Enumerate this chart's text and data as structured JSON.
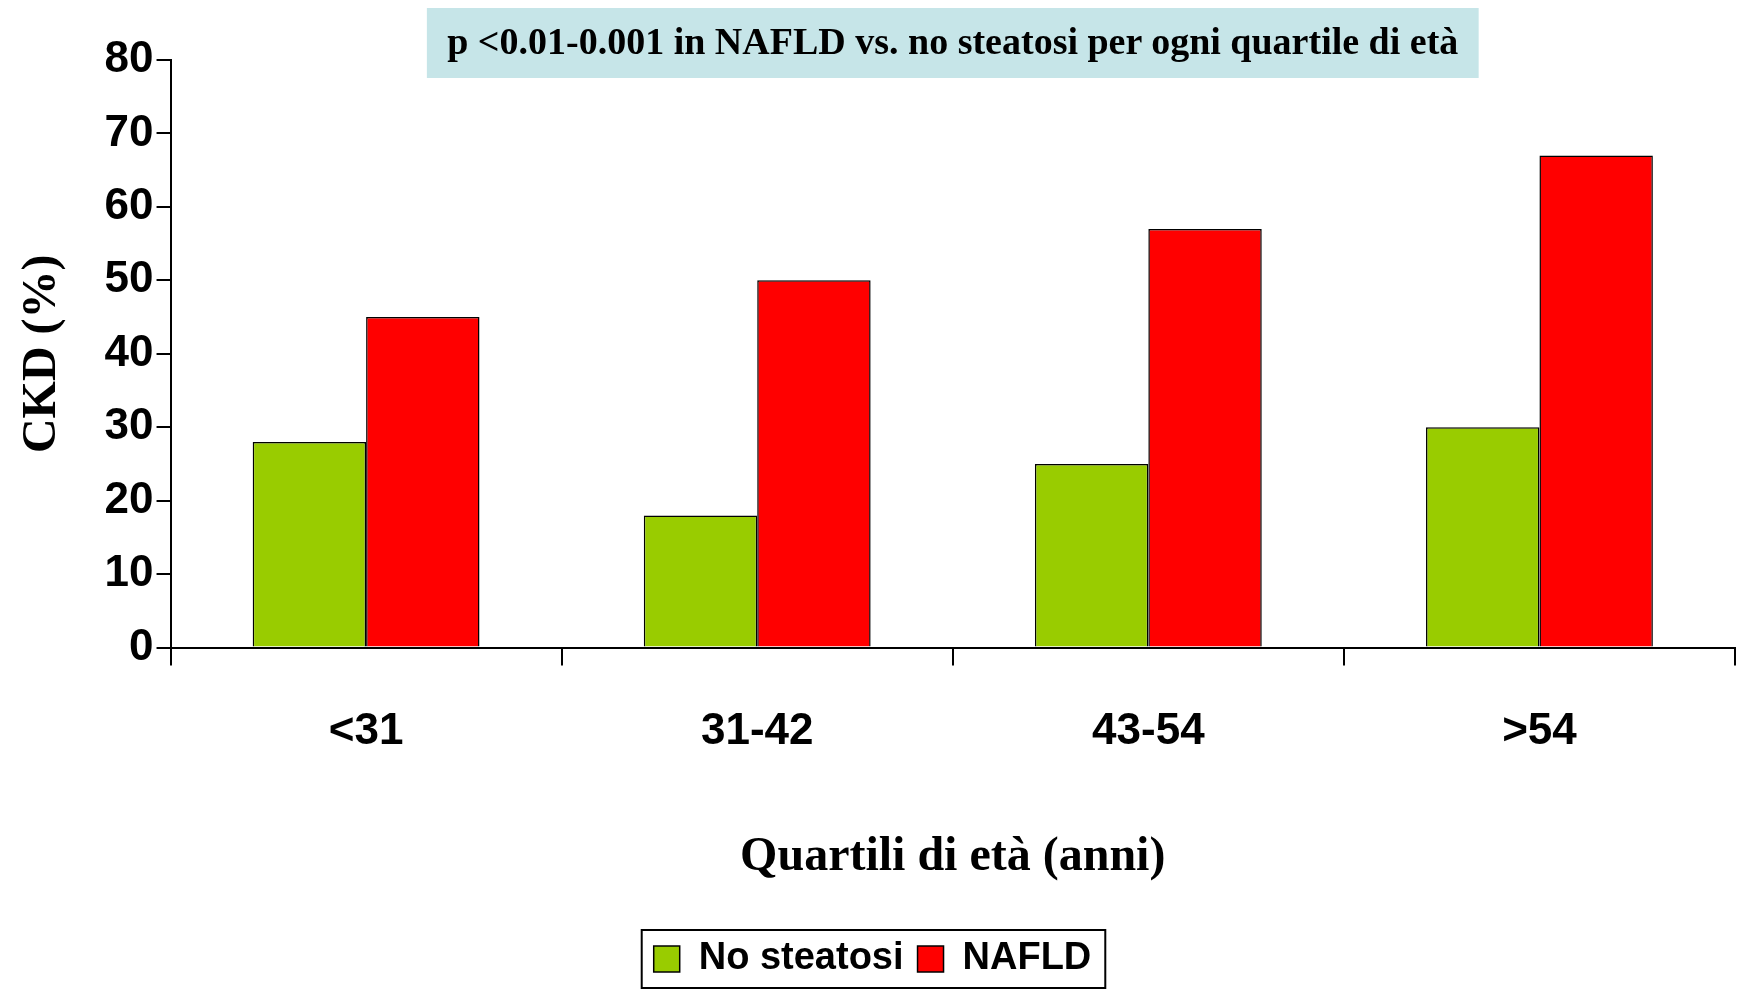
{
  "chart_data": {
    "type": "bar",
    "xlabel": "Quartili di età (anni)",
    "ylabel": "CKD (%)",
    "annotations": [
      "p <0.01-0.001 in NAFLD vs. no steatosi per ogni quartile di età"
    ],
    "categories": [
      "<31",
      "31-42",
      "43-54",
      ">54"
    ],
    "series": [
      {
        "name": "No steatosi",
        "color": "#99cc00",
        "values": [
          28,
          18,
          25,
          30
        ]
      },
      {
        "name": "NAFLD",
        "color": "#ff0000",
        "values": [
          45,
          50,
          57,
          67
        ]
      }
    ],
    "ylim": [
      0,
      80
    ],
    "yticks": [
      0,
      10,
      20,
      30,
      40,
      50,
      60,
      70,
      80
    ],
    "grid": false,
    "legend": "bottom"
  }
}
